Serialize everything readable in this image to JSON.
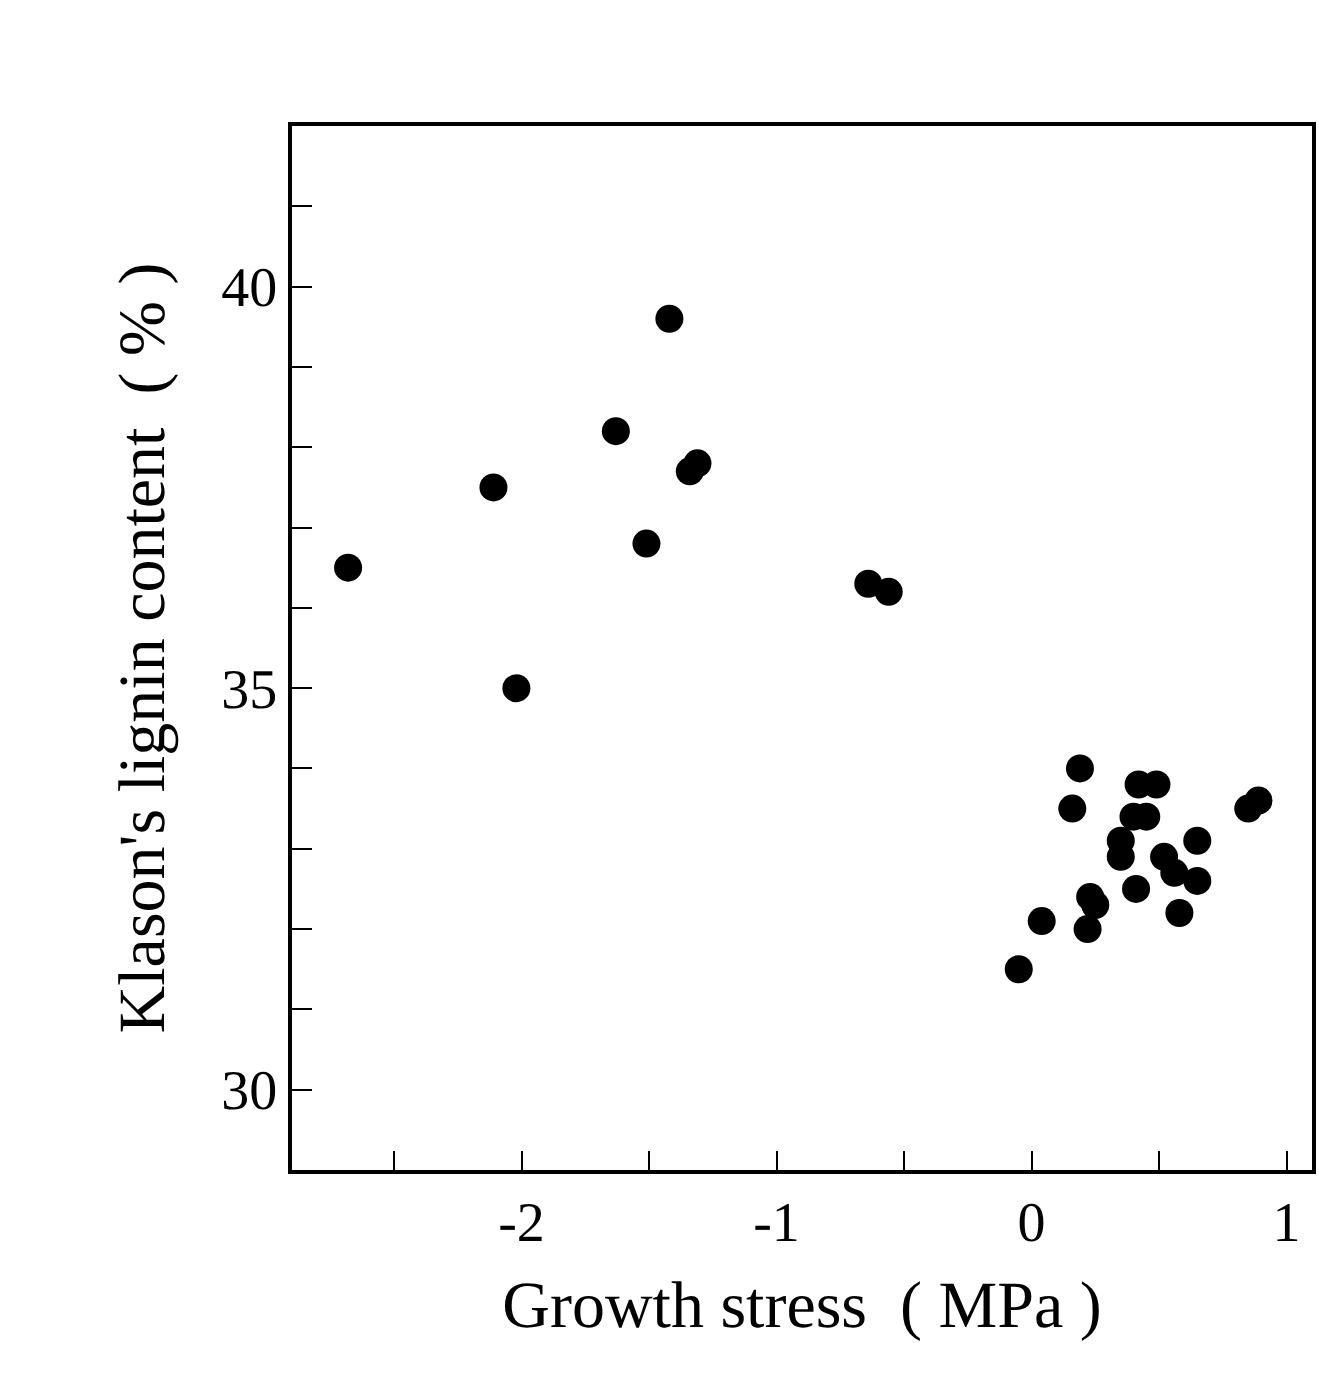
{
  "chart_data": {
    "type": "scatter",
    "xlabel": "Growth stress  ( MPa )",
    "ylabel": "Klason's lignin content  ( % )",
    "x": [
      -2.68,
      -2.11,
      -2.02,
      -1.63,
      -1.42,
      -1.51,
      -1.34,
      -1.31,
      -0.64,
      -0.56,
      0.19,
      0.16,
      0.42,
      0.49,
      0.4,
      0.45,
      0.35,
      0.35,
      0.65,
      0.52,
      0.56,
      0.65,
      0.41,
      0.58,
      0.23,
      0.25,
      0.22,
      0.04,
      -0.05,
      0.85,
      0.89
    ],
    "series": [
      {
        "color": "#000000",
        "values": [
          36.5,
          37.5,
          35.0,
          38.2,
          39.6,
          36.8,
          37.7,
          37.8,
          36.3,
          36.2,
          34.0,
          33.5,
          33.8,
          33.8,
          33.4,
          33.4,
          33.1,
          32.9,
          33.1,
          32.9,
          32.7,
          32.6,
          32.5,
          32.2,
          32.4,
          32.3,
          32.0,
          32.1,
          31.5,
          33.5,
          33.6
        ]
      }
    ],
    "marker": "circle",
    "legend": false,
    "xlim": [
      -2.9,
      1.1
    ],
    "ylim": [
      29,
      42
    ],
    "xticks": [
      {
        "value": -2.5,
        "label": null
      },
      -2,
      {
        "value": -1.5,
        "label": null
      },
      -1,
      {
        "value": -0.5,
        "label": null
      },
      0,
      {
        "value": 0.5,
        "label": null
      },
      1
    ],
    "yticks": [
      30,
      {
        "value": 31,
        "label": null
      },
      {
        "value": 32,
        "label": null
      },
      {
        "value": 33,
        "label": null
      },
      {
        "value": 34,
        "label": null
      },
      35,
      {
        "value": 36,
        "label": null
      },
      {
        "value": 37,
        "label": null
      },
      {
        "value": 38,
        "label": null
      },
      {
        "value": 39,
        "label": null
      },
      40,
      {
        "value": 41,
        "label": null
      }
    ]
  }
}
